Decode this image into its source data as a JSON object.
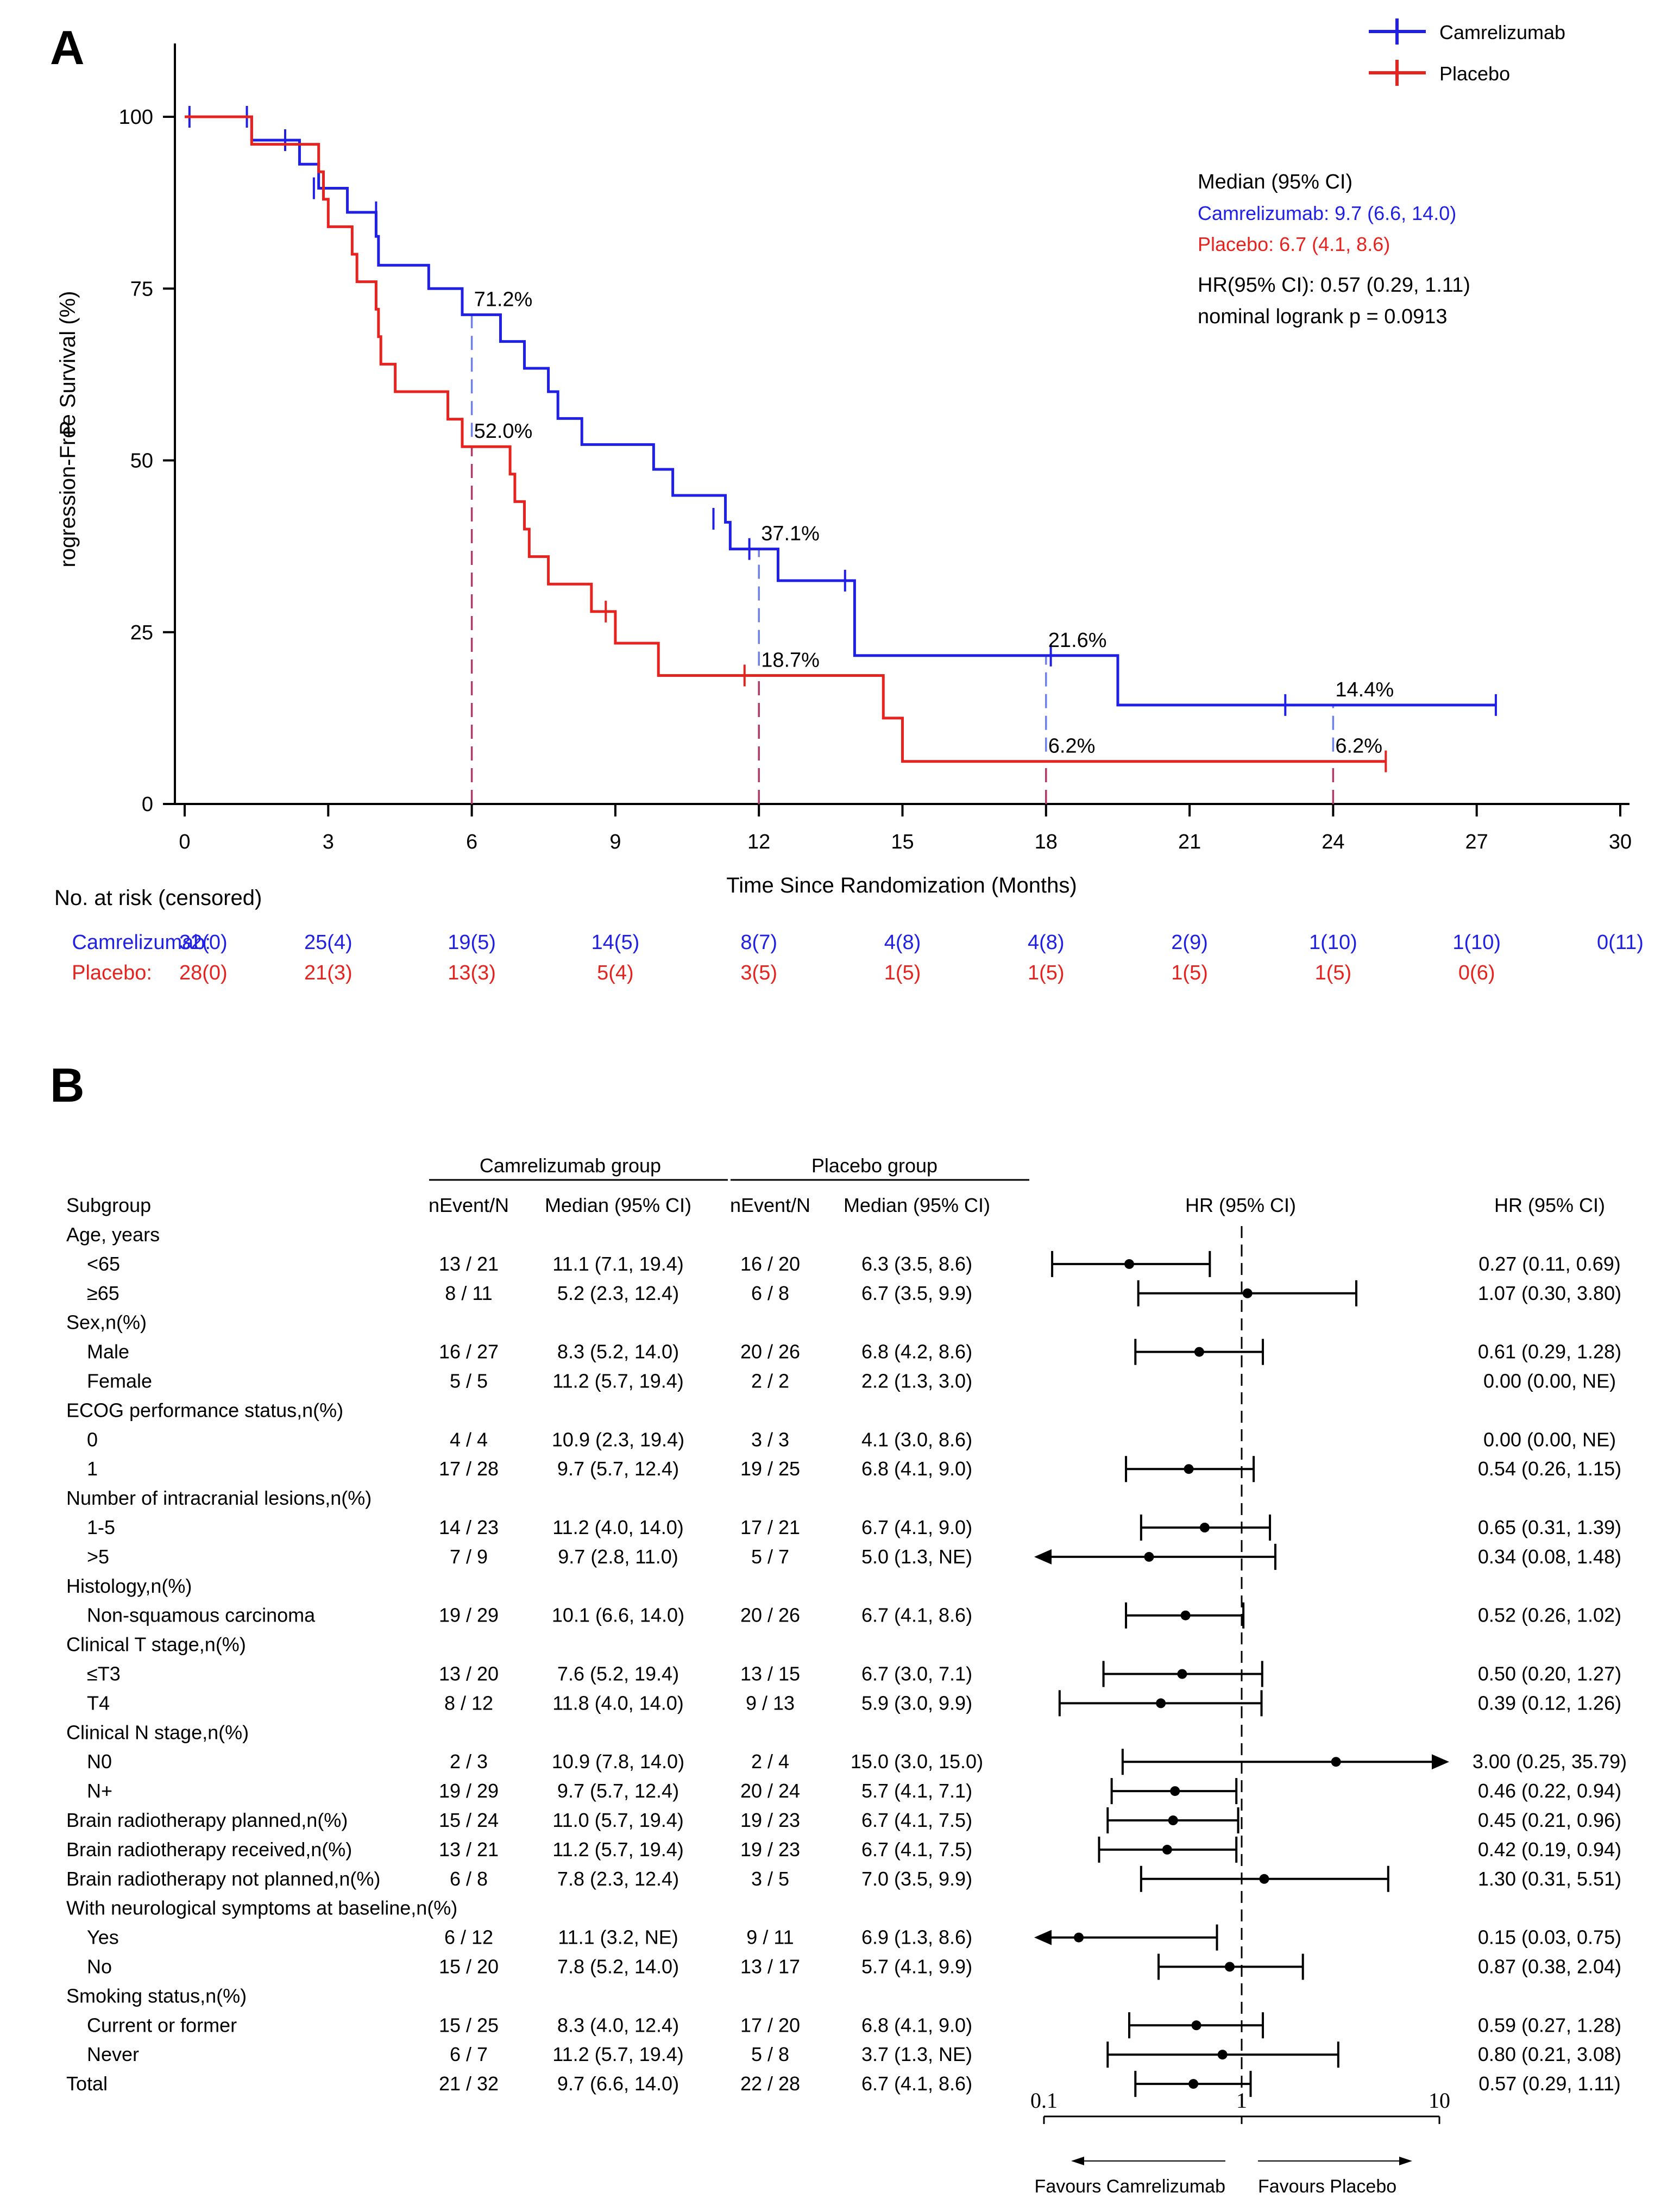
{
  "colors": {
    "blue": "#1f1fe6",
    "red": "#e6231f",
    "black": "#000000"
  },
  "panel_a": {
    "label": "A",
    "legend": [
      {
        "name": "Camrelizumab",
        "color": "#1f1fe6"
      },
      {
        "name": "Placebo",
        "color": "#e6231f"
      }
    ],
    "stats": {
      "median_title": "Median (95% CI)",
      "camrelizumab_median": "Camrelizumab: 9.7 (6.6, 14.0)",
      "placebo_median": "Placebo: 6.7 (4.1, 8.6)",
      "hr": "HR(95% CI): 0.57 (0.29, 1.11)",
      "p": "nominal logrank p = 0.0913"
    },
    "at_risk": {
      "title": "No. at risk (censored)",
      "times": [
        0,
        3,
        6,
        9,
        12,
        15,
        18,
        21,
        24,
        27,
        30
      ],
      "rows": [
        {
          "name": "Camrelizumab:",
          "color": "#1f1fe6",
          "values": [
            "32(0)",
            "25(4)",
            "19(5)",
            "14(5)",
            "8(7)",
            "4(8)",
            "4(8)",
            "2(9)",
            "1(10)",
            "1(10)",
            "0(11)"
          ]
        },
        {
          "name": "Placebo:",
          "color": "#e6231f",
          "values": [
            "28(0)",
            "21(3)",
            "13(3)",
            "5(4)",
            "3(5)",
            "1(5)",
            "1(5)",
            "1(5)",
            "1(5)",
            "0(6)",
            ""
          ]
        }
      ]
    }
  },
  "chart_data": [
    {
      "type": "line",
      "subtype": "kaplan-meier step",
      "title": "",
      "xlabel": "Time Since Randomization (Months)",
      "ylabel": "Progression-Free Survival (%)",
      "xlim": [
        0,
        30
      ],
      "ylim": [
        0,
        110
      ],
      "xticks": [
        0,
        3,
        6,
        9,
        12,
        15,
        18,
        21,
        24,
        27,
        30
      ],
      "yticks": [
        0,
        25,
        50,
        75,
        100
      ],
      "series": [
        {
          "name": "Camrelizumab",
          "color": "#1f1fe6",
          "steps": [
            [
              0,
              100
            ],
            [
              1.4,
              96.6
            ],
            [
              2.4,
              93.1
            ],
            [
              2.8,
              89.6
            ],
            [
              3.4,
              86.1
            ],
            [
              4.0,
              82.6
            ],
            [
              4.05,
              78.4
            ],
            [
              5.1,
              75.0
            ],
            [
              5.8,
              71.2
            ],
            [
              6.6,
              67.3
            ],
            [
              7.1,
              63.4
            ],
            [
              7.6,
              60.0
            ],
            [
              7.8,
              56.1
            ],
            [
              8.3,
              52.3
            ],
            [
              9.8,
              48.7
            ],
            [
              10.2,
              44.9
            ],
            [
              11.3,
              41.0
            ],
            [
              11.4,
              37.1
            ],
            [
              12.4,
              32.5
            ],
            [
              14.0,
              21.6
            ],
            [
              19.5,
              14.4
            ],
            [
              27.4,
              14.4
            ]
          ],
          "censor": [
            [
              0.1,
              100
            ],
            [
              1.3,
              100
            ],
            [
              2.1,
              96.6
            ],
            [
              2.7,
              89.6
            ],
            [
              4.0,
              86.1
            ],
            [
              11.05,
              41.5
            ],
            [
              11.8,
              37.1
            ],
            [
              13.8,
              32.5
            ],
            [
              18.1,
              21.6
            ],
            [
              23.0,
              14.4
            ],
            [
              27.4,
              14.4
            ]
          ]
        },
        {
          "name": "Placebo",
          "color": "#e6231f",
          "steps": [
            [
              0,
              100
            ],
            [
              1.4,
              96.0
            ],
            [
              2.8,
              92.0
            ],
            [
              2.9,
              88.0
            ],
            [
              3.0,
              84.0
            ],
            [
              3.5,
              80.0
            ],
            [
              3.6,
              76.0
            ],
            [
              4.0,
              72.0
            ],
            [
              4.05,
              68.0
            ],
            [
              4.1,
              64.0
            ],
            [
              4.4,
              60.0
            ],
            [
              5.5,
              56.0
            ],
            [
              5.8,
              52.0
            ],
            [
              6.8,
              48.0
            ],
            [
              6.9,
              44.0
            ],
            [
              7.1,
              40.0
            ],
            [
              7.2,
              36.0
            ],
            [
              7.6,
              32.0
            ],
            [
              8.5,
              28.0
            ],
            [
              9.0,
              23.4
            ],
            [
              9.9,
              18.7
            ],
            [
              14.6,
              12.5
            ],
            [
              15.0,
              6.2
            ],
            [
              25.1,
              6.2
            ]
          ],
          "censor": [
            [
              8.8,
              28.0
            ],
            [
              11.7,
              18.7
            ],
            [
              25.1,
              6.2
            ]
          ]
        }
      ],
      "landmarks": [
        {
          "time": 6,
          "camrelizumab": 71.2,
          "placebo": 52.0,
          "camrelizumab_label": "71.2%",
          "placebo_label": "52.0%"
        },
        {
          "time": 12,
          "camrelizumab": 37.1,
          "placebo": 18.7,
          "camrelizumab_label": "37.1%",
          "placebo_label": "18.7%"
        },
        {
          "time": 18,
          "camrelizumab": 21.6,
          "placebo": 6.2,
          "camrelizumab_label": "21.6%",
          "placebo_label": "6.2%"
        },
        {
          "time": 24,
          "camrelizumab": 14.4,
          "placebo": 6.2,
          "camrelizumab_label": "14.4%",
          "placebo_label": "6.2%"
        }
      ]
    },
    {
      "type": "forest",
      "xscale": "log",
      "xlim": [
        0.1,
        10
      ],
      "xticks": [
        0.1,
        1,
        10
      ],
      "xtick_labels": [
        "0.1",
        "1",
        "10"
      ],
      "reference": 1,
      "favours_left": "Favours Camrelizumab",
      "favours_right": "Favours Placebo",
      "rows": [
        {
          "subgroup": "Age, years",
          "header": true
        },
        {
          "subgroup": "<65",
          "indent": true,
          "cam_n": "13 / 21",
          "cam_median": "11.1 (7.1, 19.4)",
          "pla_n": "16 / 20",
          "pla_median": "6.3 (3.5, 8.6)",
          "hr": 0.27,
          "lo": 0.11,
          "hi": 0.69,
          "hr_text": "0.27 (0.11, 0.69)"
        },
        {
          "subgroup": "≥65",
          "indent": true,
          "cam_n": "8 / 11",
          "cam_median": "5.2 (2.3, 12.4)",
          "pla_n": "6 / 8",
          "pla_median": "6.7 (3.5, 9.9)",
          "hr": 1.07,
          "lo": 0.3,
          "hi": 3.8,
          "hr_text": "1.07 (0.30, 3.80)"
        },
        {
          "subgroup": "Sex,n(%)",
          "header": true
        },
        {
          "subgroup": "Male",
          "indent": true,
          "cam_n": "16 / 27",
          "cam_median": "8.3 (5.2, 14.0)",
          "pla_n": "20 / 26",
          "pla_median": "6.8 (4.2, 8.6)",
          "hr": 0.61,
          "lo": 0.29,
          "hi": 1.28,
          "hr_text": "0.61 (0.29, 1.28)"
        },
        {
          "subgroup": "Female",
          "indent": true,
          "cam_n": "5 / 5",
          "cam_median": "11.2 (5.7, 19.4)",
          "pla_n": "2 / 2",
          "pla_median": "2.2 (1.3, 3.0)",
          "hr": null,
          "hr_text": "0.00 (0.00, NE)"
        },
        {
          "subgroup": "ECOG performance status,n(%)",
          "header": true
        },
        {
          "subgroup": "0",
          "indent": true,
          "cam_n": "4 / 4",
          "cam_median": "10.9 (2.3, 19.4)",
          "pla_n": "3 / 3",
          "pla_median": "4.1 (3.0, 8.6)",
          "hr": null,
          "hr_text": "0.00 (0.00, NE)"
        },
        {
          "subgroup": "1",
          "indent": true,
          "cam_n": "17 / 28",
          "cam_median": "9.7 (5.7, 12.4)",
          "pla_n": "19 / 25",
          "pla_median": "6.8 (4.1, 9.0)",
          "hr": 0.54,
          "lo": 0.26,
          "hi": 1.15,
          "hr_text": "0.54 (0.26, 1.15)"
        },
        {
          "subgroup": "Number of intracranial lesions,n(%)",
          "header": true
        },
        {
          "subgroup": "1-5",
          "indent": true,
          "cam_n": "14 / 23",
          "cam_median": "11.2 (4.0, 14.0)",
          "pla_n": "17 / 21",
          "pla_median": "6.7 (4.1, 9.0)",
          "hr": 0.65,
          "lo": 0.31,
          "hi": 1.39,
          "hr_text": "0.65 (0.31, 1.39)"
        },
        {
          "subgroup": ">5",
          "indent": true,
          "cam_n": "7 / 9",
          "cam_median": "9.7 (2.8, 11.0)",
          "pla_n": "5 / 7",
          "pla_median": "5.0 (1.3, NE)",
          "hr": 0.34,
          "lo": 0.08,
          "hi": 1.48,
          "hr_text": "0.34 (0.08, 1.48)"
        },
        {
          "subgroup": "Histology,n(%)",
          "header": true
        },
        {
          "subgroup": "Non-squamous carcinoma",
          "indent": true,
          "cam_n": "19 / 29",
          "cam_median": "10.1 (6.6, 14.0)",
          "pla_n": "20 / 26",
          "pla_median": "6.7 (4.1, 8.6)",
          "hr": 0.52,
          "lo": 0.26,
          "hi": 1.02,
          "hr_text": "0.52 (0.26, 1.02)"
        },
        {
          "subgroup": "Clinical T stage,n(%)",
          "header": true
        },
        {
          "subgroup": "≤T3",
          "indent": true,
          "cam_n": "13 / 20",
          "cam_median": "7.6 (5.2, 19.4)",
          "pla_n": "13 / 15",
          "pla_median": "6.7 (3.0, 7.1)",
          "hr": 0.5,
          "lo": 0.2,
          "hi": 1.27,
          "hr_text": "0.50 (0.20, 1.27)"
        },
        {
          "subgroup": "T4",
          "indent": true,
          "cam_n": "8 / 12",
          "cam_median": "11.8 (4.0, 14.0)",
          "pla_n": "9 / 13",
          "pla_median": "5.9 (3.0, 9.9)",
          "hr": 0.39,
          "lo": 0.12,
          "hi": 1.26,
          "hr_text": "0.39 (0.12, 1.26)"
        },
        {
          "subgroup": "Clinical N stage,n(%)",
          "header": true
        },
        {
          "subgroup": "N0",
          "indent": true,
          "cam_n": "2 / 3",
          "cam_median": "10.9 (7.8, 14.0)",
          "pla_n": "2 / 4",
          "pla_median": "15.0 (3.0, 15.0)",
          "hr": 3.0,
          "lo": 0.25,
          "hi": 35.79,
          "hr_text": "3.00 (0.25, 35.79)"
        },
        {
          "subgroup": "N+",
          "indent": true,
          "cam_n": "19 / 29",
          "cam_median": "9.7 (5.7, 12.4)",
          "pla_n": "20 / 24",
          "pla_median": "5.7 (4.1, 7.1)",
          "hr": 0.46,
          "lo": 0.22,
          "hi": 0.94,
          "hr_text": "0.46 (0.22, 0.94)"
        },
        {
          "subgroup": "Brain radiotherapy planned,n(%)",
          "cam_n": "15 / 24",
          "cam_median": "11.0 (5.7, 19.4)",
          "pla_n": "19 / 23",
          "pla_median": "6.7 (4.1, 7.5)",
          "hr": 0.45,
          "lo": 0.21,
          "hi": 0.96,
          "hr_text": "0.45 (0.21, 0.96)"
        },
        {
          "subgroup": "Brain radiotherapy received,n(%)",
          "cam_n": "13 / 21",
          "cam_median": "11.2 (5.7, 19.4)",
          "pla_n": "19 / 23",
          "pla_median": "6.7 (4.1, 7.5)",
          "hr": 0.42,
          "lo": 0.19,
          "hi": 0.94,
          "hr_text": "0.42 (0.19, 0.94)"
        },
        {
          "subgroup": "Brain radiotherapy not planned,n(%)",
          "cam_n": "6 / 8",
          "cam_median": "7.8 (2.3, 12.4)",
          "pla_n": "3 / 5",
          "pla_median": "7.0 (3.5, 9.9)",
          "hr": 1.3,
          "lo": 0.31,
          "hi": 5.51,
          "hr_text": "1.30 (0.31, 5.51)"
        },
        {
          "subgroup": "With neurological symptoms at baseline,n(%)",
          "header": true
        },
        {
          "subgroup": "Yes",
          "indent": true,
          "cam_n": "6 / 12",
          "cam_median": "11.1 (3.2, NE)",
          "pla_n": "9 / 11",
          "pla_median": "6.9 (1.3, 8.6)",
          "hr": 0.15,
          "lo": 0.03,
          "hi": 0.75,
          "hr_text": "0.15 (0.03, 0.75)"
        },
        {
          "subgroup": "No",
          "indent": true,
          "cam_n": "15 / 20",
          "cam_median": "7.8 (5.2, 14.0)",
          "pla_n": "13 / 17",
          "pla_median": "5.7 (4.1, 9.9)",
          "hr": 0.87,
          "lo": 0.38,
          "hi": 2.04,
          "hr_text": "0.87 (0.38, 2.04)"
        },
        {
          "subgroup": "Smoking status,n(%)",
          "header": true
        },
        {
          "subgroup": "Current or former",
          "indent": true,
          "cam_n": "15 / 25",
          "cam_median": "8.3 (4.0, 12.4)",
          "pla_n": "17 / 20",
          "pla_median": "6.8 (4.1, 9.0)",
          "hr": 0.59,
          "lo": 0.27,
          "hi": 1.28,
          "hr_text": "0.59 (0.27, 1.28)"
        },
        {
          "subgroup": "Never",
          "indent": true,
          "cam_n": "6 / 7",
          "cam_median": "11.2 (5.7, 19.4)",
          "pla_n": "5 / 8",
          "pla_median": "3.7 (1.3, NE)",
          "hr": 0.8,
          "lo": 0.21,
          "hi": 3.08,
          "hr_text": "0.80 (0.21, 3.08)"
        },
        {
          "subgroup": "Total",
          "cam_n": "21 / 32",
          "cam_median": "9.7 (6.6, 14.0)",
          "pla_n": "22 / 28",
          "pla_median": "6.7 (4.1, 8.6)",
          "hr": 0.57,
          "lo": 0.29,
          "hi": 1.11,
          "hr_text": "0.57 (0.29, 1.11)"
        }
      ]
    }
  ],
  "panel_b": {
    "label": "B",
    "group_headers": {
      "camrelizumab": "Camrelizumab group",
      "placebo": "Placebo group"
    },
    "columns": {
      "subgroup": "Subgroup",
      "cam_n": "nEvent/N",
      "cam_median": "Median (95% CI)",
      "pla_n": "nEvent/N",
      "pla_median": "Median (95% CI)",
      "hr_plot": "HR (95% CI)",
      "hr_text": "HR (95% CI)"
    }
  }
}
